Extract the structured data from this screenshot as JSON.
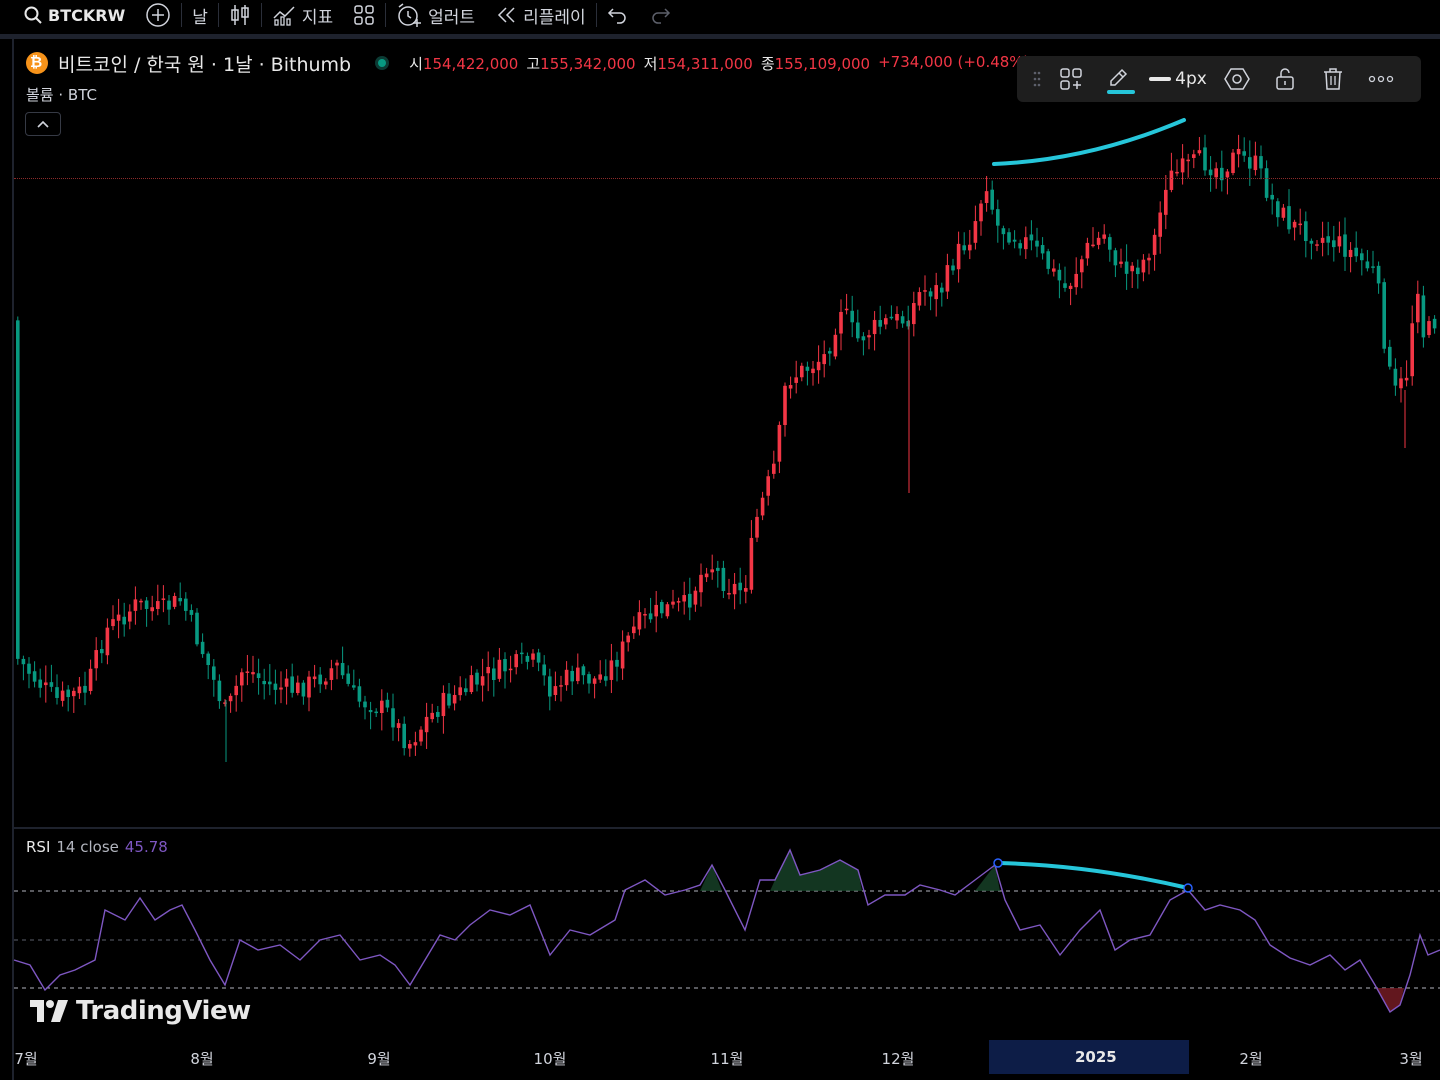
{
  "toolbar": {
    "symbol": "BTCKRW",
    "interval": "날",
    "indicators_label": "지표",
    "alerts_label": "얼러트",
    "replay_label": "리플레이"
  },
  "legend": {
    "title": "비트코인 / 한국 원 · 1날 · Bithumb",
    "open_key": "시",
    "open": "154,422,000",
    "high_key": "고",
    "high": "155,342,000",
    "low_key": "저",
    "low": "154,311,000",
    "close_key": "종",
    "close": "155,109,000",
    "change": "+734,000 (+0.48%)"
  },
  "volume_label": "볼륨 · BTC",
  "drawing_toolbar": {
    "line_width_label": "4px",
    "line_color": "#26c6da"
  },
  "rsi": {
    "name": "RSI",
    "params": "14 close",
    "value": "45.78",
    "color": "#7e57c2"
  },
  "watermark": "TradingView",
  "time_axis": {
    "ticks": [
      "7월",
      "8월",
      "9월",
      "10월",
      "11월",
      "12월",
      "2월",
      "3월"
    ],
    "highlight": "2025"
  },
  "colors": {
    "up": "#f23645",
    "down": "#089981",
    "background": "#000000",
    "trendline": "#26c6da"
  }
}
